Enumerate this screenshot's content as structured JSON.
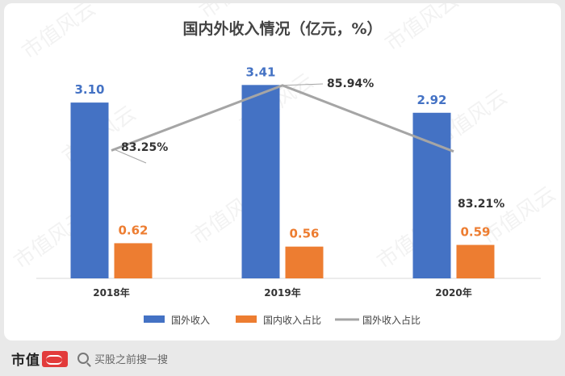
{
  "chart_data": {
    "type": "bar",
    "title": "国内外收入情况（亿元，%）",
    "categories": [
      "2018年",
      "2019年",
      "2020年"
    ],
    "series": [
      {
        "name": "国外收入",
        "type": "bar",
        "color": "#4472c4",
        "values": [
          3.1,
          3.41,
          2.92
        ],
        "labels": [
          "3.10",
          "3.41",
          "2.92"
        ]
      },
      {
        "name": "国内收入占比",
        "type": "bar",
        "color": "#ed7d31",
        "values": [
          0.62,
          0.56,
          0.59
        ],
        "labels": [
          "0.62",
          "0.56",
          "0.59"
        ]
      },
      {
        "name": "国外收入占比",
        "type": "line",
        "color": "#a5a5a5",
        "values": [
          83.25,
          85.94,
          83.21
        ],
        "labels": [
          "83.25%",
          "85.94%",
          "83.21%"
        ]
      }
    ],
    "bar_axis_range": [
      0,
      3.5
    ],
    "line_axis_range": [
      78,
      86
    ],
    "grid": false,
    "legend_position": "bottom"
  },
  "watermark": "市值风云",
  "footer": {
    "brand": "市值",
    "search_placeholder": "买股之前搜一搜"
  },
  "colors": {
    "bar_label_blue": "#4472c4",
    "bar_label_orange": "#ed7d31",
    "line_label": "#333333",
    "axis": "#d9d9d9",
    "title": "#444444"
  }
}
